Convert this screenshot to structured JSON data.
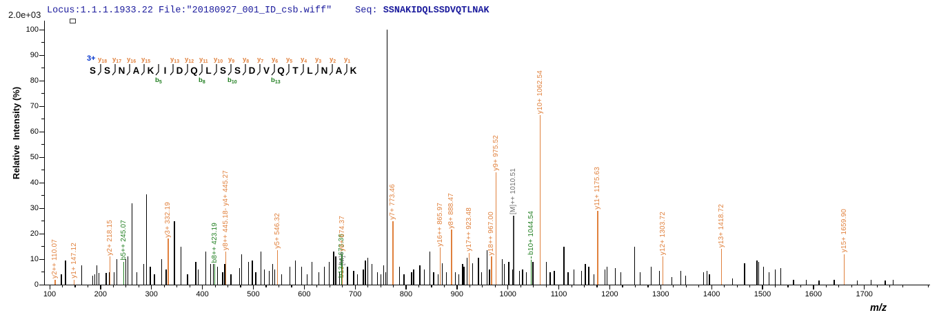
{
  "header": {
    "locus_file": "Locus:1.1.1.1933.22 File:\"20180927_001_ID_csb.wiff\"",
    "seq_label": "Seq: ",
    "sequence": "SSNAKIDQLSSDVQTLNAK"
  },
  "base_peak_intensity": "2.0e+03",
  "precursor_charge": "3+",
  "axis": {
    "ylabel": "Relative  Intensity (%)",
    "xlabel": "m/z"
  },
  "colors": {
    "y_ion": "#E0803C",
    "b_ion": "#1E7D1E",
    "precursor": "#6b6b6b",
    "precursor_line": "#3a3a3a",
    "peak": "#000000",
    "header_text": "#1a1a9c",
    "charge_text": "#0033cc"
  },
  "sequence_annotation": {
    "residues": [
      "S",
      "S",
      "N",
      "A",
      "K",
      "I",
      "D",
      "Q",
      "L",
      "S",
      "S",
      "D",
      "V",
      "Q",
      "T",
      "L",
      "N",
      "A",
      "K"
    ],
    "boundaries": [
      {
        "y": "y18"
      },
      {
        "y": "y17"
      },
      {
        "y": "y16"
      },
      {
        "y": "y15"
      },
      {
        "b": "b5"
      },
      {
        "y": "y13"
      },
      {
        "y": "y12"
      },
      {
        "y": "y11",
        "b": "b8"
      },
      {
        "y": "y10"
      },
      {
        "y": "y9",
        "b": "b10"
      },
      {
        "y": "y8"
      },
      {
        "y": "y7"
      },
      {
        "y": "y6",
        "b": "b13"
      },
      {
        "y": "y5"
      },
      {
        "y": "y4"
      },
      {
        "y": "y3"
      },
      {
        "y": "y2"
      },
      {
        "y": "y1"
      }
    ]
  },
  "chart_data": {
    "type": "bar",
    "subtype": "ms2-annotated-spectrum",
    "title": "",
    "xlabel": "m/z",
    "ylabel": "Relative  Intensity (%)",
    "xlim": [
      100,
      1828
    ],
    "ylim": [
      0,
      100
    ],
    "x_major_ticks": [
      100,
      200,
      300,
      400,
      500,
      600,
      700,
      800,
      900,
      1000,
      1100,
      1200,
      1300,
      1400,
      1500,
      1600,
      1700
    ],
    "x_minor_step": 25,
    "y_major_ticks": [
      0,
      10,
      20,
      30,
      40,
      50,
      60,
      70,
      80,
      90,
      100
    ],
    "y_minor_step": 5,
    "grid": false,
    "annotated_peaks": [
      {
        "mz": 110.07,
        "lh": 2,
        "text": "y2++ 110.07",
        "c": "y"
      },
      {
        "mz": 147.12,
        "lh": 2,
        "text": "y1+ 147.12",
        "c": "y"
      },
      {
        "mz": 218.15,
        "lh": 11,
        "text": "y2+ 218.15",
        "c": "y"
      },
      {
        "mz": 245.07,
        "lh": 9,
        "text": "b5++ 245.07",
        "c": "b"
      },
      {
        "mz": 332.19,
        "lh": 18,
        "text": "y3+ 332.19",
        "c": "y"
      },
      {
        "mz": 423.19,
        "lh": 8,
        "text": "b8++ 423.19",
        "c": "b"
      },
      {
        "mz": 445.18,
        "lh": 13,
        "text": "y8++ 445.18- y4+ 445.27",
        "c": "y"
      },
      {
        "mz": 546.32,
        "lh": 13.5,
        "text": "y5+ 546.32",
        "c": "y"
      },
      {
        "mz": 673.36,
        "lh": 2,
        "text": "b13++ 673.36",
        "c": "b"
      },
      {
        "mz": 674.37,
        "lh": 7,
        "segs": [
          [
            "[M]+",
            "M"
          ],
          [
            "y6+ 674.37",
            "y"
          ]
        ],
        "c": "y"
      },
      {
        "mz": 773.46,
        "lh": 25,
        "text": "y7+ 773.46",
        "c": "y"
      },
      {
        "mz": 865.97,
        "lh": 14.5,
        "text": "y16++ 865.97",
        "c": "y"
      },
      {
        "mz": 888.47,
        "lh": 21.5,
        "text": "y8+ 888.47",
        "c": "y"
      },
      {
        "mz": 923.48,
        "lh": 12.5,
        "text": "y17++ 923.48",
        "c": "y"
      },
      {
        "mz": 967.0,
        "lh": 11,
        "text": "y18++ 967.00",
        "c": "y"
      },
      {
        "mz": 975.52,
        "lh": 44,
        "text": "y9+ 975.52",
        "c": "y"
      },
      {
        "mz": 1010.51,
        "lh": 27,
        "text": "[M]++ 1010.51",
        "c": "M"
      },
      {
        "mz": 1044.54,
        "lh": 11,
        "text": "b10+ 1044.54",
        "c": "b",
        "dash": true
      },
      {
        "mz": 1062.54,
        "lh": 66.5,
        "text": "y10+ 1062.54",
        "c": "y"
      },
      {
        "mz": 1175.63,
        "lh": 29,
        "text": "y11+ 1175.63",
        "c": "y"
      },
      {
        "mz": 1303.72,
        "lh": 11,
        "text": "y12+ 1303.72",
        "c": "y"
      },
      {
        "mz": 1418.72,
        "lh": 14,
        "text": "y13+ 1418.72",
        "c": "y"
      },
      {
        "mz": 1659.9,
        "lh": 12,
        "text": "y15+ 1659.90",
        "c": "y"
      }
    ],
    "colored_peaks": [
      {
        "mz": 673.36,
        "h": 12,
        "c": "b"
      },
      {
        "mz": 1044.54,
        "h": 9.5,
        "c": "b"
      }
    ],
    "peaks": [
      [
        122,
        4
      ],
      [
        130,
        9.5
      ],
      [
        162,
        7.5
      ],
      [
        184,
        3.5
      ],
      [
        188,
        4
      ],
      [
        192,
        7.5
      ],
      [
        196,
        4.5
      ],
      [
        210,
        4.5
      ],
      [
        216,
        5
      ],
      [
        226,
        5
      ],
      [
        231,
        10
      ],
      [
        249,
        10
      ],
      [
        253,
        11
      ],
      [
        261,
        32
      ],
      [
        270,
        5
      ],
      [
        284,
        8
      ],
      [
        289,
        35.5
      ],
      [
        297,
        7
      ],
      [
        305,
        4
      ],
      [
        319,
        10
      ],
      [
        328,
        6
      ],
      [
        344,
        25
      ],
      [
        357,
        15
      ],
      [
        370,
        4
      ],
      [
        386,
        9
      ],
      [
        391,
        6
      ],
      [
        406,
        13
      ],
      [
        415,
        8
      ],
      [
        421,
        8
      ],
      [
        429,
        7
      ],
      [
        439,
        5
      ],
      [
        443,
        8
      ],
      [
        455,
        4
      ],
      [
        472,
        6.5
      ],
      [
        476,
        12
      ],
      [
        490,
        9
      ],
      [
        497,
        9.5
      ],
      [
        504,
        5
      ],
      [
        514,
        13
      ],
      [
        521,
        6
      ],
      [
        530,
        5.5
      ],
      [
        537,
        8
      ],
      [
        541,
        6
      ],
      [
        555,
        4
      ],
      [
        571,
        7
      ],
      [
        582,
        9.5
      ],
      [
        594,
        7
      ],
      [
        605,
        4
      ],
      [
        614,
        9
      ],
      [
        628,
        5
      ],
      [
        639,
        7
      ],
      [
        648,
        9
      ],
      [
        657,
        13
      ],
      [
        661,
        11
      ],
      [
        668,
        5
      ],
      [
        684,
        7
      ],
      [
        696,
        5.5
      ],
      [
        704,
        4
      ],
      [
        715,
        6
      ],
      [
        719,
        9.5
      ],
      [
        724,
        10.5
      ],
      [
        732,
        8
      ],
      [
        743,
        5
      ],
      [
        750,
        4
      ],
      [
        755,
        7.5
      ],
      [
        759,
        5
      ],
      [
        762,
        100
      ],
      [
        786,
        7
      ],
      [
        795,
        4
      ],
      [
        810,
        5
      ],
      [
        814,
        6
      ],
      [
        826,
        7.5
      ],
      [
        835,
        6
      ],
      [
        846,
        13
      ],
      [
        853,
        5
      ],
      [
        862,
        4
      ],
      [
        870,
        8.5
      ],
      [
        878,
        5
      ],
      [
        896,
        5
      ],
      [
        903,
        4
      ],
      [
        910,
        8
      ],
      [
        913,
        7
      ],
      [
        919,
        10.5
      ],
      [
        930,
        8.5
      ],
      [
        941,
        10.5
      ],
      [
        947,
        5
      ],
      [
        958,
        13.5
      ],
      [
        963,
        6
      ],
      [
        988,
        10
      ],
      [
        992,
        8
      ],
      [
        1001,
        9
      ],
      [
        1008,
        6
      ],
      [
        1022,
        5.5
      ],
      [
        1028,
        6
      ],
      [
        1035,
        5
      ],
      [
        1048,
        9
      ],
      [
        1075,
        9
      ],
      [
        1082,
        5
      ],
      [
        1090,
        5.5
      ],
      [
        1109,
        15
      ],
      [
        1117,
        5
      ],
      [
        1129,
        6
      ],
      [
        1144,
        5.5
      ],
      [
        1151,
        8
      ],
      [
        1158,
        7
      ],
      [
        1168,
        4
      ],
      [
        1190,
        6
      ],
      [
        1194,
        7
      ],
      [
        1210,
        6.5
      ],
      [
        1221,
        5
      ],
      [
        1248,
        15
      ],
      [
        1259,
        5
      ],
      [
        1280,
        7
      ],
      [
        1297,
        5.5
      ],
      [
        1321,
        3
      ],
      [
        1339,
        5.5
      ],
      [
        1348,
        3.5
      ],
      [
        1383,
        5
      ],
      [
        1390,
        5.5
      ],
      [
        1395,
        4
      ],
      [
        1440,
        2.5
      ],
      [
        1464,
        8.5
      ],
      [
        1488,
        9.5
      ],
      [
        1492,
        9
      ],
      [
        1501,
        7
      ],
      [
        1512,
        5
      ],
      [
        1524,
        6
      ],
      [
        1535,
        6.5
      ],
      [
        1560,
        2
      ],
      [
        1585,
        2
      ],
      [
        1610,
        1.5
      ],
      [
        1640,
        2
      ],
      [
        1685,
        1.5
      ],
      [
        1712,
        2
      ],
      [
        1740,
        1.5
      ],
      [
        1756,
        2
      ]
    ]
  }
}
